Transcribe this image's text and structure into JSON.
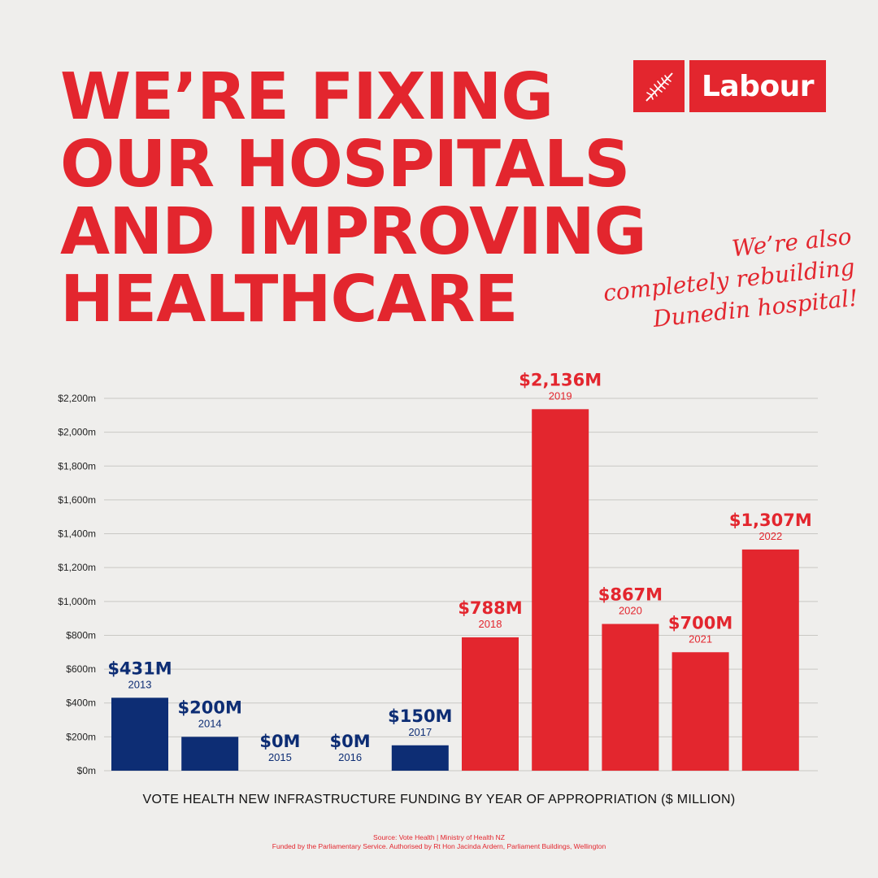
{
  "headline": {
    "line1": "WE’RE FIXING",
    "line2": "OUR HOSPITALS",
    "line3": "AND IMPROVING",
    "line4": "HEALTHCARE"
  },
  "logo": {
    "text": "Labour",
    "icon": "fern-icon"
  },
  "note": {
    "line1": "We’re also",
    "line2": "completely rebuilding",
    "line3": "Dunedin hospital!"
  },
  "colors": {
    "red": "#e3262e",
    "navy": "#0d2d74",
    "background": "#efeeec",
    "grid": "#c9c8c4"
  },
  "chart_data": {
    "type": "bar",
    "categories": [
      "2013",
      "2014",
      "2015",
      "2016",
      "2017",
      "2018",
      "2019",
      "2020",
      "2021",
      "2022"
    ],
    "values": [
      431,
      200,
      0,
      0,
      150,
      788,
      2136,
      867,
      700,
      1307
    ],
    "value_labels": [
      "$431M",
      "$200M",
      "$0M",
      "$0M",
      "$150M",
      "$788M",
      "$2,136M",
      "$867M",
      "$700M",
      "$1,307M"
    ],
    "bar_colors": [
      "#0d2d74",
      "#0d2d74",
      "#0d2d74",
      "#0d2d74",
      "#0d2d74",
      "#e3262e",
      "#e3262e",
      "#e3262e",
      "#e3262e",
      "#e3262e"
    ],
    "ylim": [
      0,
      2200
    ],
    "yticks": [
      0,
      200,
      400,
      600,
      800,
      1000,
      1200,
      1400,
      1600,
      1800,
      2000,
      2200
    ],
    "ytick_labels": [
      "$0m",
      "$200m",
      "$400m",
      "$600m",
      "$800m",
      "$1,000m",
      "$1,200m",
      "$1,400m",
      "$1,600m",
      "$1,800m",
      "$2,000m",
      "$2,200m"
    ],
    "grid": true,
    "xlabel": "VOTE HEALTH NEW INFRASTRUCTURE FUNDING BY YEAR OF APPROPRIATION ($ MILLION)",
    "ylabel": "",
    "legend": "none"
  },
  "footer": {
    "source": "Source: Vote Health | Ministry of Health NZ",
    "authorised": "Funded by the Parliamentary Service. Authorised by Rt Hon Jacinda Ardern, Parliament Buildings, Wellington"
  }
}
